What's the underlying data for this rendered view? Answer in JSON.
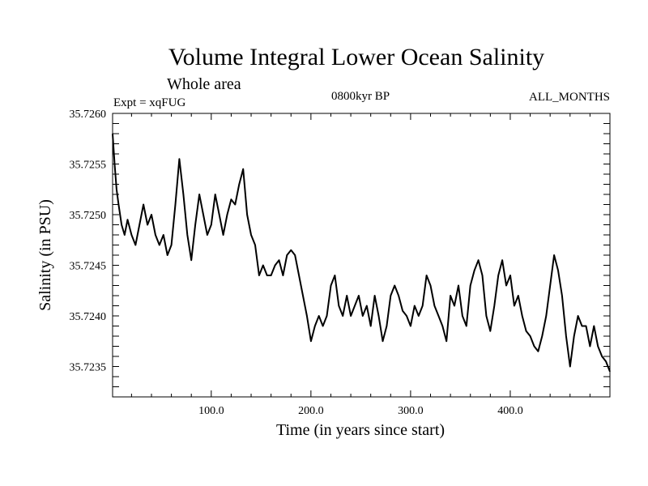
{
  "chart_data": {
    "type": "line",
    "title": "Volume Integral Lower Ocean Salinity",
    "subtitle": "Whole area",
    "experiment_label": "Expt = xqFUG",
    "period_label": "0800kyr BP",
    "months_label": "ALL_MONTHS",
    "xlabel": "Time (in years since start)",
    "ylabel": "Salinity (in PSU)",
    "xlim": [
      1,
      500
    ],
    "ylim": [
      35.7232,
      35.726
    ],
    "x_ticks": [
      100,
      200,
      300,
      400
    ],
    "x_tick_labels": [
      "100.0",
      "200.0",
      "300.0",
      "400.0"
    ],
    "y_ticks": [
      35.7235,
      35.724,
      35.7245,
      35.725,
      35.7255,
      35.726
    ],
    "y_tick_labels": [
      "35.7235",
      "35.7240",
      "35.7245",
      "35.7250",
      "35.7255",
      "35.7260"
    ],
    "series": [
      {
        "name": "Volume integral lower ocean salinity",
        "color": "#000000",
        "x": [
          1,
          3,
          5,
          7,
          10,
          13,
          16,
          20,
          24,
          28,
          32,
          36,
          40,
          44,
          48,
          52,
          56,
          60,
          64,
          68,
          72,
          76,
          80,
          84,
          88,
          92,
          96,
          100,
          104,
          108,
          112,
          116,
          120,
          124,
          128,
          132,
          136,
          140,
          144,
          148,
          152,
          156,
          160,
          164,
          168,
          172,
          176,
          180,
          184,
          188,
          192,
          196,
          200,
          204,
          208,
          212,
          216,
          220,
          224,
          228,
          232,
          236,
          240,
          244,
          248,
          252,
          256,
          260,
          264,
          268,
          272,
          276,
          280,
          284,
          288,
          292,
          296,
          300,
          304,
          308,
          312,
          316,
          320,
          324,
          328,
          332,
          336,
          340,
          344,
          348,
          352,
          356,
          360,
          364,
          368,
          372,
          376,
          380,
          384,
          388,
          392,
          396,
          400,
          404,
          408,
          412,
          416,
          420,
          424,
          428,
          432,
          436,
          440,
          444,
          448,
          452,
          456,
          460,
          464,
          468,
          472,
          476,
          480,
          484,
          488,
          492,
          496,
          500
        ],
        "values": [
          35.7258,
          35.7255,
          35.72525,
          35.7251,
          35.7249,
          35.7248,
          35.72495,
          35.7248,
          35.7247,
          35.7249,
          35.7251,
          35.7249,
          35.725,
          35.7248,
          35.7247,
          35.7248,
          35.7246,
          35.7247,
          35.7251,
          35.72555,
          35.7252,
          35.7248,
          35.72455,
          35.7249,
          35.7252,
          35.725,
          35.7248,
          35.7249,
          35.7252,
          35.725,
          35.7248,
          35.725,
          35.72515,
          35.7251,
          35.7253,
          35.72545,
          35.725,
          35.7248,
          35.7247,
          35.7244,
          35.7245,
          35.7244,
          35.7244,
          35.7245,
          35.72455,
          35.7244,
          35.7246,
          35.72465,
          35.7246,
          35.7244,
          35.7242,
          35.724,
          35.72375,
          35.7239,
          35.724,
          35.7239,
          35.724,
          35.7243,
          35.7244,
          35.7241,
          35.724,
          35.7242,
          35.724,
          35.7241,
          35.7242,
          35.724,
          35.7241,
          35.7239,
          35.7242,
          35.724,
          35.72375,
          35.7239,
          35.7242,
          35.7243,
          35.7242,
          35.72405,
          35.724,
          35.7239,
          35.7241,
          35.724,
          35.7241,
          35.7244,
          35.7243,
          35.7241,
          35.724,
          35.7239,
          35.72375,
          35.7242,
          35.7241,
          35.7243,
          35.724,
          35.7239,
          35.7243,
          35.72445,
          35.72455,
          35.7244,
          35.724,
          35.72385,
          35.7241,
          35.7244,
          35.72455,
          35.7243,
          35.7244,
          35.7241,
          35.7242,
          35.724,
          35.72385,
          35.7238,
          35.7237,
          35.72365,
          35.7238,
          35.724,
          35.7243,
          35.7246,
          35.72445,
          35.7242,
          35.7238,
          35.7235,
          35.7238,
          35.724,
          35.7239,
          35.7239,
          35.7237,
          35.7239,
          35.7237,
          35.7236,
          35.72355,
          35.72345
        ]
      }
    ]
  }
}
